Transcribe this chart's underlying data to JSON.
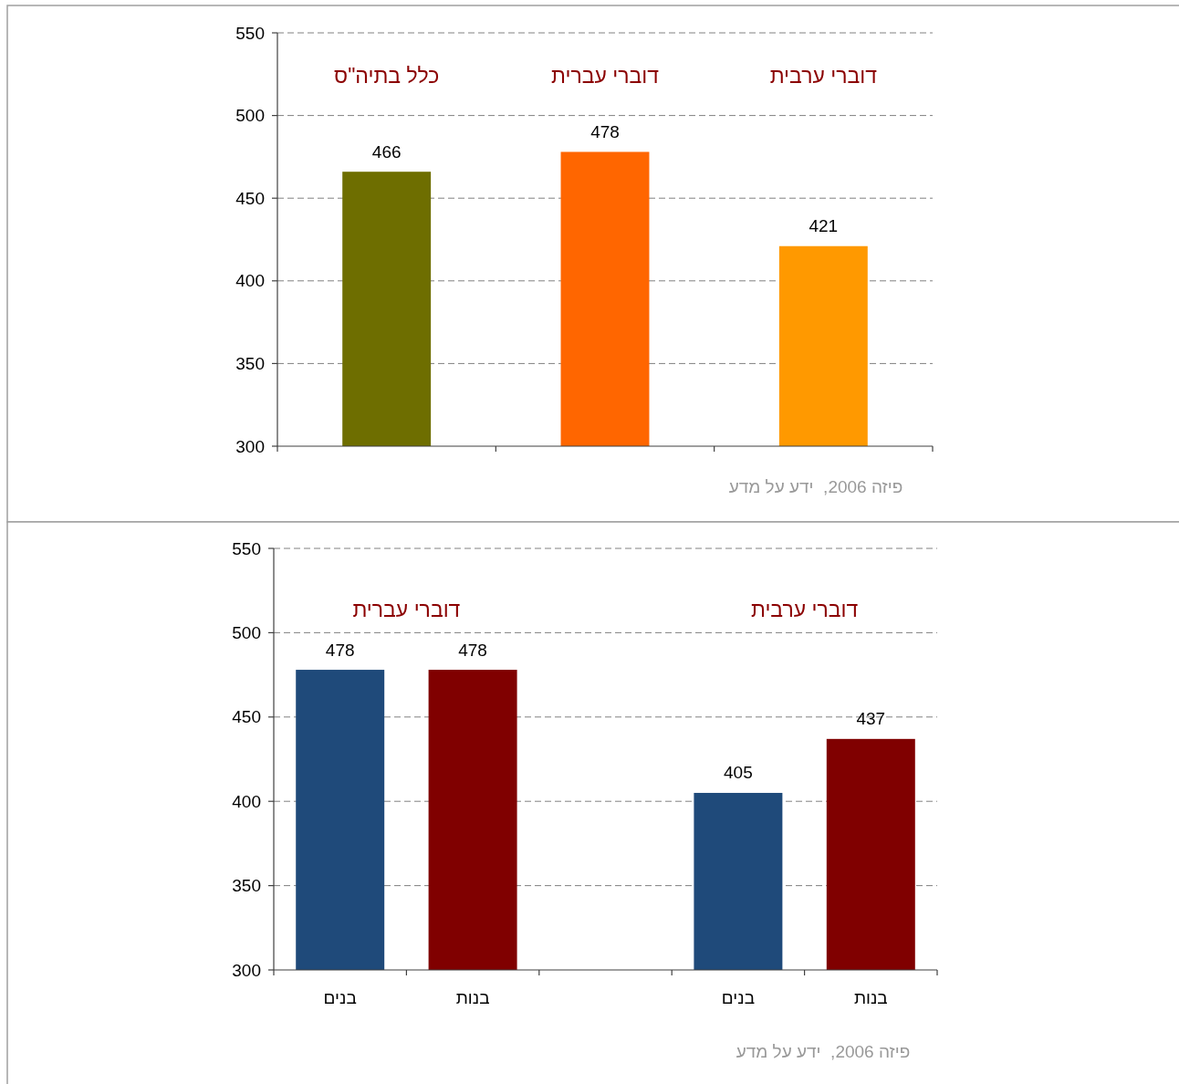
{
  "chart_data": [
    {
      "type": "bar",
      "categories": [
        "כלל בתיה\"ס",
        "דוברי עברית",
        "דוברי ערבית"
      ],
      "values": [
        466,
        478,
        421
      ],
      "colors": [
        "#6e6e00",
        "#ff6600",
        "#ff9900"
      ],
      "ylim": [
        300,
        550
      ],
      "yticks": [
        300,
        350,
        400,
        450,
        500,
        550
      ],
      "grid": "y",
      "data_labels": true,
      "tick_labels": "y",
      "annotations": [
        "פיזה 2006,  ידע על מדע"
      ]
    },
    {
      "type": "bar",
      "categories": [
        "בנים",
        "בנות",
        null,
        "בנים",
        "בנות"
      ],
      "values": [
        478,
        478,
        null,
        405,
        437
      ],
      "colors": [
        "#1f4a7a",
        "#800000",
        null,
        "#1f4a7a",
        "#800000"
      ],
      "ylim": [
        300,
        550
      ],
      "yticks": [
        300,
        350,
        400,
        450,
        500,
        550
      ],
      "grid": "y",
      "data_labels": true,
      "annotations": [
        "דוברי עברית",
        "דוברי ערבית",
        "פיזה 2006,  ידע על מדע"
      ]
    }
  ]
}
